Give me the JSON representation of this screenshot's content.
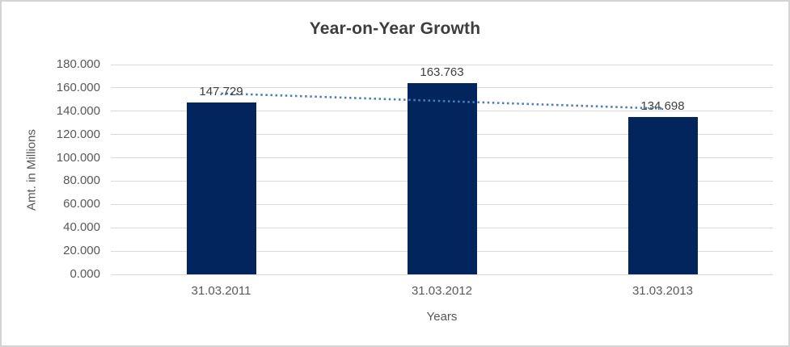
{
  "frame": {
    "background": "#ffffff",
    "border_color": "#d4d4d4"
  },
  "chart_data": {
    "type": "bar",
    "title": "Year-on-Year Growth",
    "xlabel": "Years",
    "ylabel": "Amt. in Millions",
    "categories": [
      "31.03.2011",
      "31.03.2012",
      "31.03.2013"
    ],
    "values": [
      147.729,
      163.763,
      134.698
    ],
    "value_labels": [
      "147.729",
      "163.763",
      "134.698"
    ],
    "ylim": [
      0,
      180
    ],
    "ytick_step": 20,
    "ytick_labels": [
      "0.000",
      "20.000",
      "40.000",
      "60.000",
      "80.000",
      "100.000",
      "120.000",
      "140.000",
      "160.000",
      "180.000"
    ],
    "grid": true,
    "legend": "none",
    "bar_color": "#02255e",
    "gridline_color": "#d9d9d9",
    "title_color": "#3d3d3d",
    "axis_text_color": "#595959",
    "trendline": {
      "style": "dotted",
      "color": "#4a7ebb",
      "start_value": 155.25,
      "end_value": 142.21
    }
  }
}
